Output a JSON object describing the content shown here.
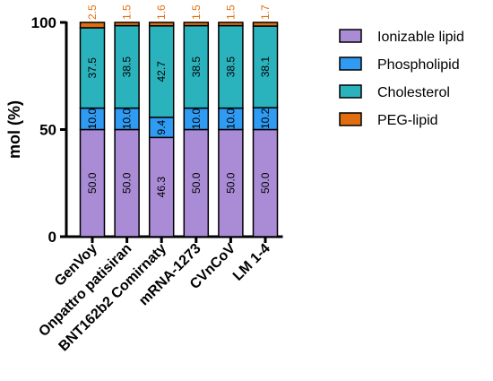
{
  "chart_data": {
    "type": "bar",
    "stacked": true,
    "title": "",
    "xlabel": "",
    "ylabel": "mol (%)",
    "ylim": [
      0,
      100
    ],
    "yticks": [
      "0",
      "50",
      "100"
    ],
    "grid": false,
    "legend_position": "right",
    "categories": [
      "GenVoy",
      "Onpattro patisiran",
      "BNT162b2 Comirnaty",
      "mRNA-1273",
      "CVnCoV",
      "LM 1-4"
    ],
    "series": [
      {
        "name": "Ionizable lipid",
        "color": "#a98bd6",
        "values": [
          50.0,
          50.0,
          46.3,
          50.0,
          50.0,
          50.0
        ],
        "labels": [
          "50.0",
          "50.0",
          "46.3",
          "50.0",
          "50.0",
          "50.0"
        ]
      },
      {
        "name": "Phospholipid",
        "color": "#2f9bf2",
        "values": [
          10.0,
          10.0,
          9.4,
          10.0,
          10.0,
          10.2
        ],
        "labels": [
          "10.0",
          "10.0",
          "9.4",
          "10.0",
          "10.0",
          "10.2"
        ]
      },
      {
        "name": "Cholesterol",
        "color": "#2bb3bd",
        "values": [
          37.5,
          38.5,
          42.7,
          38.5,
          38.5,
          38.1
        ],
        "labels": [
          "37.5",
          "38.5",
          "42.7",
          "38.5",
          "38.5",
          "38.1"
        ]
      },
      {
        "name": "PEG-lipid",
        "color": "#e06d0f",
        "values": [
          2.5,
          1.5,
          1.6,
          1.5,
          1.5,
          1.7
        ],
        "labels": [
          "2.5",
          "1.5",
          "1.6",
          "1.5",
          "1.5",
          "1.7"
        ]
      }
    ]
  }
}
